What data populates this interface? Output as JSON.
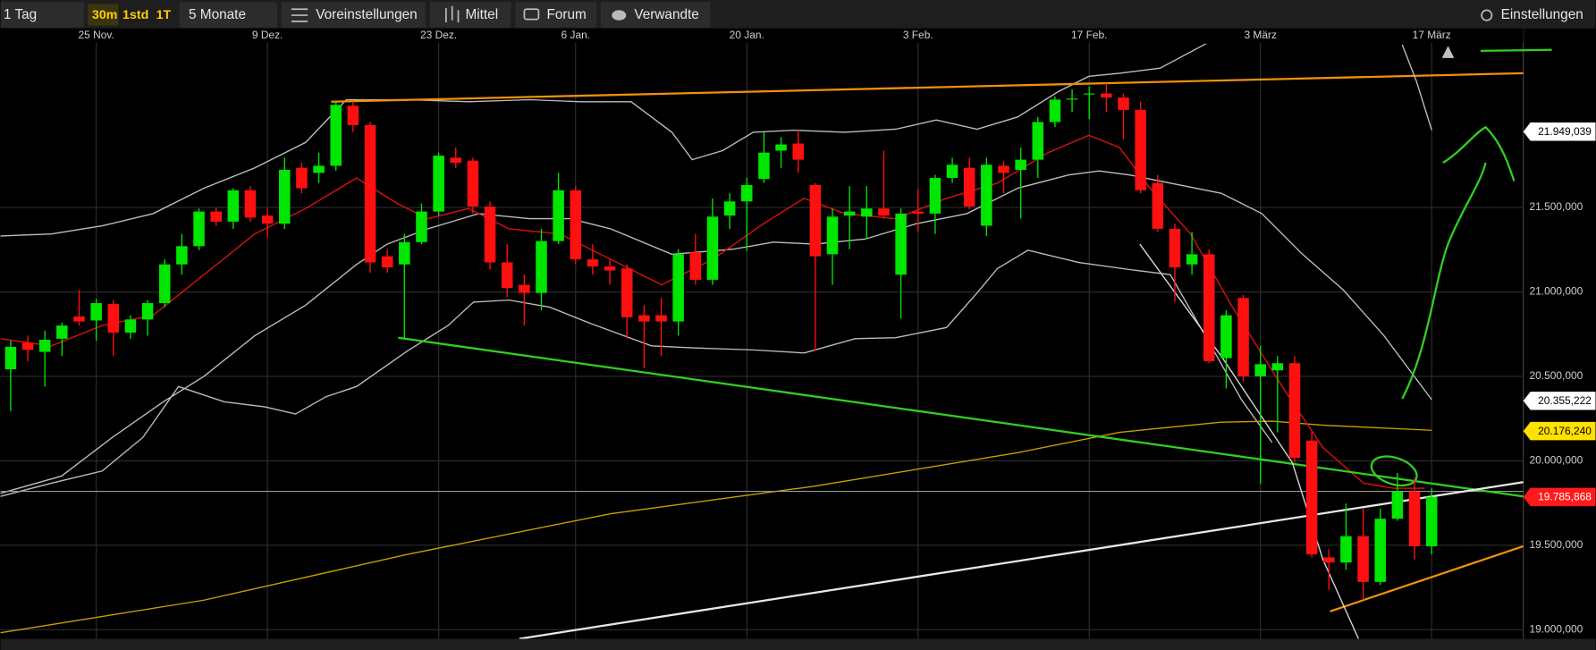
{
  "toolbar": {
    "range": "1 Tag",
    "intervals": [
      "30m",
      "1std",
      "1T"
    ],
    "period": "5 Monate",
    "buttons": [
      "Voreinstellungen",
      "Mittel",
      "Forum",
      "Verwandte"
    ],
    "settings": "Einstellungen"
  },
  "chart_data": {
    "type": "candlestick",
    "categories": [
      null,
      null,
      null,
      null,
      null,
      "25 Nov.",
      null,
      null,
      null,
      null,
      null,
      null,
      null,
      null,
      null,
      "9 Dez.",
      null,
      null,
      null,
      null,
      null,
      null,
      null,
      null,
      null,
      "23 Dez.",
      null,
      null,
      null,
      null,
      null,
      null,
      null,
      "6 Jan.",
      null,
      null,
      null,
      null,
      null,
      null,
      null,
      null,
      null,
      "20 Jan.",
      null,
      null,
      null,
      null,
      null,
      null,
      null,
      null,
      null,
      "3 Feb.",
      null,
      null,
      null,
      null,
      null,
      null,
      null,
      null,
      null,
      "17 Feb.",
      null,
      null,
      null,
      null,
      null,
      null,
      null,
      null,
      null,
      "3 März",
      null,
      null,
      null,
      null,
      null,
      null,
      null,
      null,
      null,
      "17 März"
    ],
    "open": [
      20542,
      20699,
      20645,
      20723,
      20855,
      20831,
      20928,
      20759,
      20837,
      20934,
      21163,
      21271,
      21476,
      21416,
      21602,
      21452,
      21404,
      21735,
      21705,
      21747,
      22102,
      21988,
      21211,
      21163,
      21295,
      21476,
      21795,
      21777,
      21506,
      21175,
      21042,
      20994,
      21301,
      21602,
      21193,
      21151,
      21139,
      20862,
      20862,
      20825,
      21235,
      21072,
      21452,
      21536,
      21669,
      21837,
      21879,
      21633,
      21223,
      21452,
      21446,
      21494,
      21102,
      21476,
      21464,
      21675,
      21735,
      21392,
      21747,
      21723,
      21783,
      22006,
      22139,
      22169,
      22175,
      22151,
      22078,
      21645,
      21374,
      21163,
      21223,
      20608,
      20964,
      20500,
      20536,
      20578,
      20120,
      19428,
      19398,
      19554,
      19283,
      19657,
      19819,
      19494
    ],
    "high": [
      20711,
      20741,
      20771,
      20819,
      21012,
      20958,
      20952,
      20861,
      20952,
      21193,
      21343,
      21494,
      21500,
      21614,
      21627,
      21494,
      21795,
      21765,
      21825,
      22127,
      22127,
      22006,
      21253,
      21343,
      21524,
      21825,
      21855,
      21795,
      21536,
      21283,
      21102,
      21373,
      21705,
      21627,
      21283,
      21193,
      21163,
      20922,
      20964,
      21253,
      21343,
      21554,
      21584,
      21675,
      21946,
      21916,
      21958,
      21645,
      21494,
      21627,
      21627,
      21837,
      21494,
      21608,
      21693,
      21795,
      21795,
      21795,
      21777,
      21855,
      22036,
      22157,
      22199,
      22217,
      22235,
      22175,
      22127,
      21693,
      21404,
      21355,
      21253,
      20892,
      20982,
      20681,
      20620,
      20620,
      20169,
      19476,
      19747,
      19717,
      19717,
      19928,
      19898,
      19837
    ],
    "low": [
      20295,
      20590,
      20440,
      20620,
      20801,
      20711,
      20620,
      20723,
      20741,
      20910,
      21102,
      21247,
      21392,
      21373,
      21416,
      21325,
      21373,
      21584,
      21645,
      21717,
      21946,
      21114,
      21114,
      20717,
      21283,
      21452,
      21735,
      21464,
      21133,
      20970,
      20801,
      20892,
      21283,
      21163,
      21102,
      21042,
      20723,
      20548,
      20620,
      20741,
      21042,
      21042,
      21373,
      21241,
      21645,
      21735,
      21705,
      20651,
      21042,
      21253,
      21313,
      21434,
      20843,
      21355,
      21343,
      21645,
      21488,
      21331,
      21584,
      21434,
      21675,
      21976,
      22066,
      22024,
      22066,
      21904,
      21584,
      21355,
      20940,
      21102,
      20578,
      20428,
      20470,
      19861,
      20169,
      19988,
      19428,
      19235,
      19355,
      19175,
      19265,
      19645,
      19416,
      19446
    ],
    "close": [
      20675,
      20657,
      20717,
      20801,
      20825,
      20934,
      20759,
      20837,
      20934,
      21163,
      21271,
      21476,
      21416,
      21602,
      21440,
      21404,
      21723,
      21614,
      21747,
      22108,
      21988,
      21175,
      21145,
      21295,
      21476,
      21807,
      21765,
      21506,
      21175,
      21024,
      20994,
      21301,
      21602,
      21193,
      21151,
      21127,
      20850,
      20825,
      20825,
      21223,
      21072,
      21446,
      21536,
      21633,
      21825,
      21873,
      21783,
      21211,
      21446,
      21476,
      21494,
      21452,
      21464,
      21464,
      21675,
      21753,
      21506,
      21753,
      21705,
      21783,
      22006,
      22139,
      22145,
      22175,
      22151,
      22078,
      21602,
      21374,
      21145,
      21223,
      20590,
      20862,
      20500,
      20572,
      20578,
      20018,
      19446,
      19398,
      19554,
      19283,
      19657,
      19819,
      19494,
      19786
    ],
    "up_color": "#00e600",
    "down_color": "#ff1010",
    "ylim": [
      18946,
      22560
    ],
    "yticks": [
      {
        "value": 19000,
        "label": "19.000,000"
      },
      {
        "value": 19500,
        "label": "19.500,000"
      },
      {
        "value": 20000,
        "label": "20.000,000"
      },
      {
        "value": 20500,
        "label": "20.500,000"
      },
      {
        "value": 21000,
        "label": "21.000,000"
      },
      {
        "value": 21500,
        "label": "21.500,000"
      }
    ],
    "grid": true,
    "price_labels": [
      {
        "value": 21949.039,
        "label": "21.949,039",
        "color": "#ffffff"
      },
      {
        "value": 20355.222,
        "label": "20.355,222",
        "color": "#ffffff"
      },
      {
        "value": 20176.24,
        "label": "20.176,240",
        "color": "#ffe000"
      },
      {
        "value": 19785.868,
        "label": "19.785,868",
        "color": "#ff1a1a"
      }
    ]
  }
}
